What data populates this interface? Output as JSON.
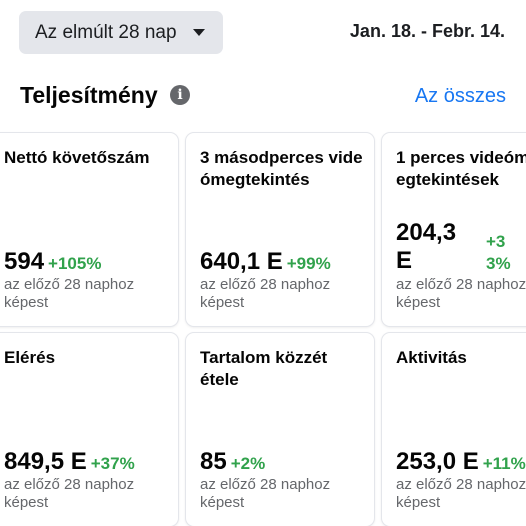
{
  "header": {
    "range_label": "Az elmúlt 28 nap",
    "date_range": "Jan. 18. - Febr. 14."
  },
  "section": {
    "title": "Teljesítmény",
    "info_glyph": "i",
    "see_all": "Az összes"
  },
  "colors": {
    "positive": "#31a24c",
    "link": "#1877f2",
    "muted": "#65676b"
  },
  "cards": [
    {
      "title": "Nettó követőszám",
      "value": "594",
      "change": "+105%",
      "note": "az előző 28 naphoz képest"
    },
    {
      "title": "3 másodperces videómegtekintés",
      "value": "640,1 E",
      "change": "+99%",
      "note": "az előző 28 naphoz képest"
    },
    {
      "title": "1 perces videómegtekintések",
      "value": "204,3 E",
      "change": "+33%",
      "note": "az előző 28 naphoz képest"
    },
    {
      "title": "Elérés",
      "value": "849,5 E",
      "change": "+37%",
      "note": "az előző 28 naphoz képest"
    },
    {
      "title": "Tartalom közzététele",
      "value": "85",
      "change": "+2%",
      "note": "az előző 28 naphoz képest"
    },
    {
      "title": "Aktivitás",
      "value": "253,0 E",
      "change": "+11%",
      "note": "az előző 28 naphoz képest"
    }
  ]
}
